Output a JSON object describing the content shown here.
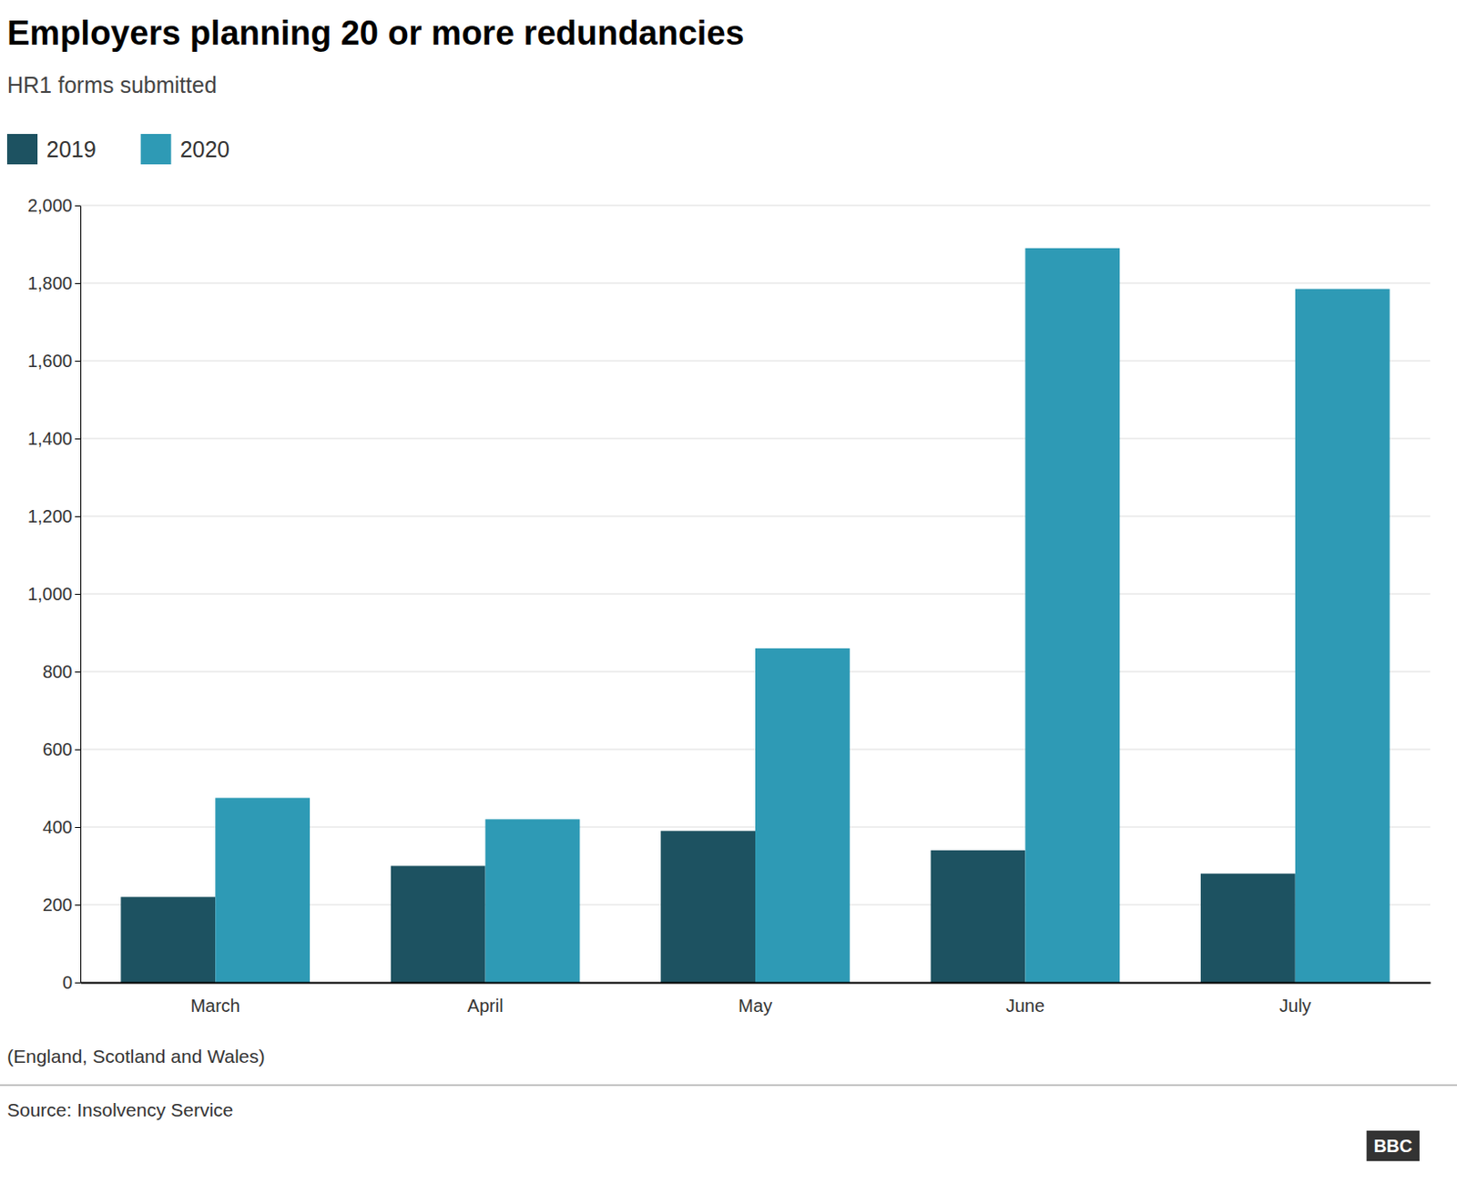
{
  "chart_data": {
    "type": "bar",
    "title": "Employers planning 20 or more redundancies",
    "subtitle": "HR1 forms submitted",
    "categories": [
      "March",
      "April",
      "May",
      "June",
      "July"
    ],
    "series": [
      {
        "name": "2019",
        "color": "#1d5261",
        "values": [
          220,
          300,
          390,
          340,
          280
        ]
      },
      {
        "name": "2020",
        "color": "#2e9ab5",
        "values": [
          475,
          420,
          860,
          1890,
          1785
        ]
      }
    ],
    "ylim": [
      0,
      2000
    ],
    "yticks": [
      0,
      200,
      400,
      600,
      800,
      {
        "value": 1000,
        "label": "1,000"
      },
      {
        "value": 1200,
        "label": "1,200"
      },
      {
        "value": 1400,
        "label": "1,400"
      },
      {
        "value": 1600,
        "label": "1,600"
      },
      {
        "value": 1800,
        "label": "1,800"
      },
      {
        "value": 2000,
        "label": "2,000"
      }
    ],
    "grid": true,
    "legend": "top",
    "annotations": [
      "(England, Scotland and Wales)",
      "Source: Insolvency Service",
      "BBC"
    ]
  }
}
